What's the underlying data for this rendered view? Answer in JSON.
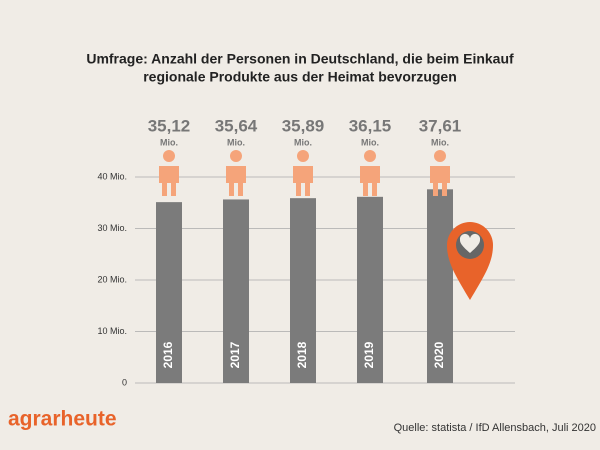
{
  "chart_data": {
    "type": "bar",
    "title": [
      "Umfrage: Anzahl der Personen in Deutschland, die beim Einkauf",
      "regionale Produkte aus der Heimat bevorzugen"
    ],
    "categories": [
      "2016",
      "2017",
      "2018",
      "2019",
      "2020"
    ],
    "values": [
      35.12,
      35.64,
      35.89,
      36.15,
      37.61
    ],
    "value_labels": [
      "35,12",
      "35,64",
      "35,89",
      "36,15",
      "37,61"
    ],
    "value_unit": "Mio.",
    "color": "#7b7b7b",
    "ylim": [
      0,
      40
    ],
    "yticks": [
      0,
      {
        "value": 10,
        "label": "10 Mio."
      },
      {
        "value": 20,
        "label": "20 Mio."
      },
      {
        "value": 30,
        "label": "30 Mio."
      },
      {
        "value": 40,
        "label": "40 Mio."
      }
    ],
    "grid": true,
    "logo": "agrarheute",
    "source": "Quelle: statista / IfD Allensbach, Juli 2020"
  }
}
